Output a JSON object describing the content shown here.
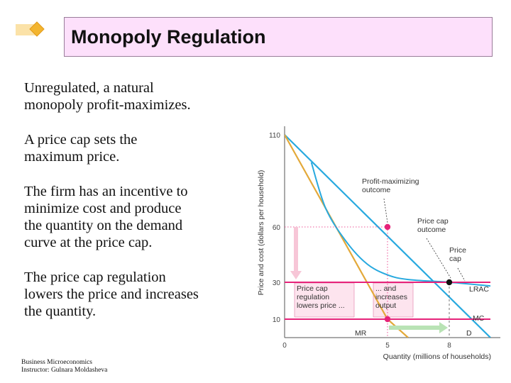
{
  "slide": {
    "title": "Monopoly Regulation",
    "bullets": [
      "Unregulated, a natural monopoly profit-maximizes.",
      "A price cap sets the maximum price.",
      "The firm has an incentive to minimize cost and produce the quantity on the demand curve at the price cap.",
      "The price cap regulation lowers the price and increases the quantity."
    ],
    "bullet_lines": [
      [
        "Unregulated, a natural",
        "monopoly profit-maximizes."
      ],
      [
        "A price cap sets the",
        "maximum price."
      ],
      [
        "The firm has an incentive to",
        "minimize cost and produce",
        "the quantity on the demand",
        "curve at the price cap."
      ],
      [
        "The price cap regulation",
        "lowers the price and increases",
        "the quantity."
      ]
    ],
    "footer_lines": [
      "Business Microeconomics",
      "Instructor: Gulnara Moldasheva"
    ],
    "logo_icon": "diamond-logo-icon"
  },
  "chart_data": {
    "type": "line",
    "xlabel": "Quantity (millions of households)",
    "ylabel": "Price and cost (dollars per household)",
    "xlim": [
      0,
      10
    ],
    "ylim": [
      0,
      110
    ],
    "x_ticks": [
      "0",
      "5",
      "8"
    ],
    "x_tick_values": [
      0,
      5,
      8
    ],
    "y_ticks": [
      "110",
      "60",
      "30",
      "10"
    ],
    "y_tick_values": [
      110,
      60,
      30,
      10
    ],
    "series": [
      {
        "name": "D",
        "color": "#27a9df",
        "points": [
          [
            0,
            110
          ],
          [
            10,
            0
          ]
        ]
      },
      {
        "name": "MR",
        "color": "#e3a93a",
        "points": [
          [
            0,
            110
          ],
          [
            5,
            10
          ],
          [
            6,
            0
          ]
        ]
      },
      {
        "name": "LRAC",
        "color": "#27a9df",
        "points": [
          [
            1.3,
            95
          ],
          [
            2,
            70
          ],
          [
            3,
            52
          ],
          [
            4,
            40
          ],
          [
            5,
            34
          ],
          [
            6,
            31.5
          ],
          [
            8,
            30
          ],
          [
            10,
            28
          ]
        ]
      },
      {
        "name": "MC",
        "color": "#e6237a",
        "points": [
          [
            0,
            10
          ],
          [
            10,
            10
          ]
        ]
      },
      {
        "name": "Price cap",
        "color": "#e6237a",
        "points": [
          [
            0,
            30
          ],
          [
            10,
            30
          ]
        ]
      }
    ],
    "points": [
      {
        "name": "Profit-maximizing outcome",
        "x": 5,
        "y": 60,
        "color": "#e6237a"
      },
      {
        "name": "Price cap outcome",
        "x": 8,
        "y": 30,
        "color": "#111111"
      },
      {
        "name": "MR at MC",
        "x": 5,
        "y": 10,
        "color": "#e6237a"
      }
    ],
    "annotations": {
      "profit_max": [
        "Profit-maximizing",
        "outcome"
      ],
      "price_cap_outcome": [
        "Price cap",
        "outcome"
      ],
      "price_cap": [
        "Price",
        "cap"
      ],
      "regulation_lowers": [
        "Price cap",
        "regulation",
        "lowers price ..."
      ],
      "increases_output": [
        "... and",
        "increases",
        "output"
      ]
    },
    "colors": {
      "demand": "#27a9df",
      "mr": "#e3a93a",
      "pink": "#e6237a",
      "arrow_price": "#f7c6d7",
      "arrow_qty": "#b9e3b5"
    }
  }
}
